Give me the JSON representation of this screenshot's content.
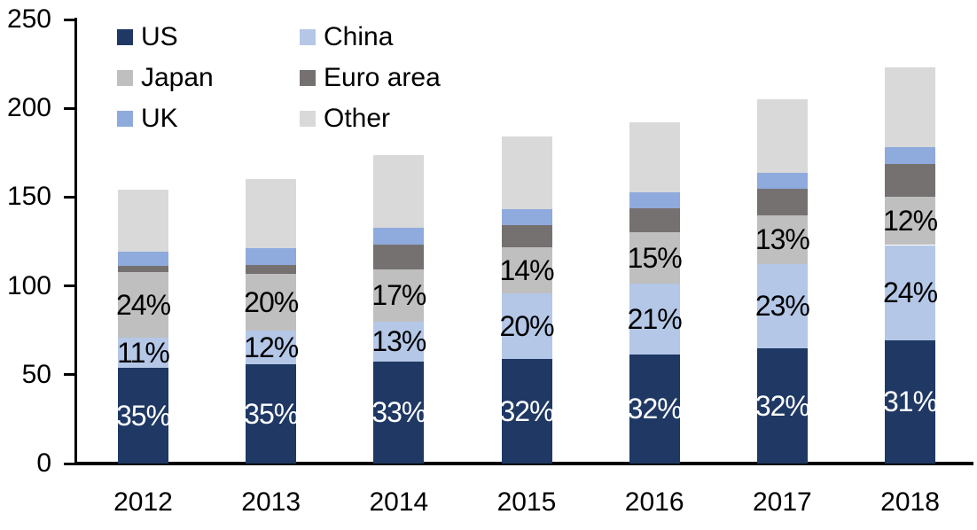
{
  "chart_data": {
    "type": "bar",
    "stacked": true,
    "categories": [
      "2012",
      "2013",
      "2014",
      "2015",
      "2016",
      "2017",
      "2018"
    ],
    "series": [
      {
        "name": "US",
        "color": "#1F3864",
        "values": [
          54,
          56,
          57.5,
          59,
          61.5,
          65,
          69.5
        ],
        "labels": [
          "35%",
          "35%",
          "33%",
          "32%",
          "32%",
          "32%",
          "31%"
        ],
        "label_color": "#FFFFFF"
      },
      {
        "name": "China",
        "color": "#B4C7E7",
        "values": [
          17,
          19,
          22.5,
          37,
          40,
          47.5,
          53.5
        ],
        "labels": [
          "11%",
          "12%",
          "13%",
          "20%",
          "21%",
          "23%",
          "24%"
        ],
        "label_color": "#000000"
      },
      {
        "name": "Japan",
        "color": "#BFBFBF",
        "values": [
          37,
          32,
          29.5,
          26,
          28.5,
          27,
          27
        ],
        "labels": [
          "24%",
          "20%",
          "17%",
          "14%",
          "15%",
          "13%",
          "12%"
        ],
        "label_color": "#000000"
      },
      {
        "name": "Euro area",
        "color": "#767171",
        "values": [
          3.5,
          5,
          14,
          12,
          13.5,
          15,
          18.5
        ],
        "labels": null,
        "label_color": null
      },
      {
        "name": "UK",
        "color": "#8FAADC",
        "values": [
          8,
          9.5,
          9,
          9,
          9,
          9,
          9.5
        ],
        "labels": null,
        "label_color": null
      },
      {
        "name": "Other",
        "color": "#D9D9D9",
        "values": [
          34.5,
          38.5,
          41,
          41,
          39.5,
          41.5,
          45
        ],
        "labels": null,
        "label_color": null
      }
    ],
    "totals": [
      154,
      160,
      173.5,
      184,
      192,
      205,
      223
    ],
    "y_axis": {
      "min": 0,
      "max": 250,
      "step": 50,
      "ticks": [
        0,
        50,
        100,
        150,
        200,
        250
      ]
    },
    "x_axis": {
      "labels": [
        "2012",
        "2013",
        "2014",
        "2015",
        "2016",
        "2017",
        "2018"
      ]
    },
    "legend": {
      "position": "top-left",
      "columns": 2,
      "order": [
        "US",
        "China",
        "Japan",
        "Euro area",
        "UK",
        "Other"
      ]
    },
    "axis_color": "#000000",
    "background_color": "#FFFFFF",
    "grid": false
  }
}
